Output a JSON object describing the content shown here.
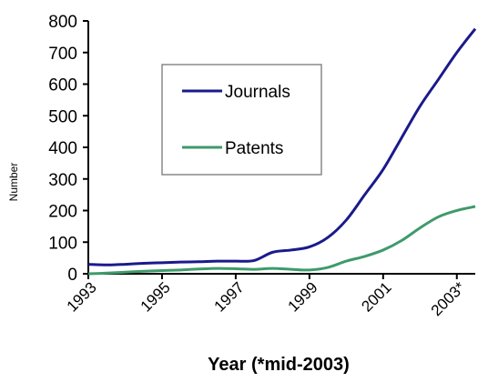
{
  "chart_data": {
    "type": "line",
    "title": "",
    "xlabel": "Year (*mid-2003)",
    "ylabel": "Number",
    "x_tick_labels": [
      "1993",
      "1995",
      "1997",
      "1999",
      "2001",
      "2003*"
    ],
    "y_tick_labels": [
      "0",
      "100",
      "200",
      "300",
      "400",
      "500",
      "600",
      "700",
      "800"
    ],
    "xlim": [
      1993,
      2003.5
    ],
    "ylim": [
      0,
      800
    ],
    "grid": false,
    "legend_position": "upper-left-inset",
    "series": [
      {
        "name": "Journals",
        "color": "#1a1a8c",
        "points": [
          [
            1993.0,
            30
          ],
          [
            1993.5,
            28
          ],
          [
            1994.0,
            30
          ],
          [
            1994.5,
            33
          ],
          [
            1995.0,
            35
          ],
          [
            1995.5,
            37
          ],
          [
            1996.0,
            38
          ],
          [
            1996.5,
            40
          ],
          [
            1997.0,
            40
          ],
          [
            1997.5,
            42
          ],
          [
            1998.0,
            68
          ],
          [
            1998.5,
            75
          ],
          [
            1999.0,
            85
          ],
          [
            1999.5,
            115
          ],
          [
            2000.0,
            170
          ],
          [
            2000.5,
            250
          ],
          [
            2001.0,
            330
          ],
          [
            2001.5,
            430
          ],
          [
            2002.0,
            530
          ],
          [
            2002.5,
            615
          ],
          [
            2003.0,
            700
          ],
          [
            2003.5,
            775
          ]
        ]
      },
      {
        "name": "Patents",
        "color": "#3f9a6b",
        "points": [
          [
            1993.0,
            0
          ],
          [
            1993.5,
            2
          ],
          [
            1994.0,
            5
          ],
          [
            1994.5,
            8
          ],
          [
            1995.0,
            10
          ],
          [
            1995.5,
            12
          ],
          [
            1996.0,
            15
          ],
          [
            1996.5,
            17
          ],
          [
            1997.0,
            16
          ],
          [
            1997.5,
            14
          ],
          [
            1998.0,
            17
          ],
          [
            1998.5,
            14
          ],
          [
            1999.0,
            12
          ],
          [
            1999.5,
            20
          ],
          [
            2000.0,
            40
          ],
          [
            2000.5,
            55
          ],
          [
            2001.0,
            75
          ],
          [
            2001.5,
            105
          ],
          [
            2002.0,
            145
          ],
          [
            2002.5,
            180
          ],
          [
            2003.0,
            200
          ],
          [
            2003.5,
            213
          ]
        ]
      }
    ]
  }
}
